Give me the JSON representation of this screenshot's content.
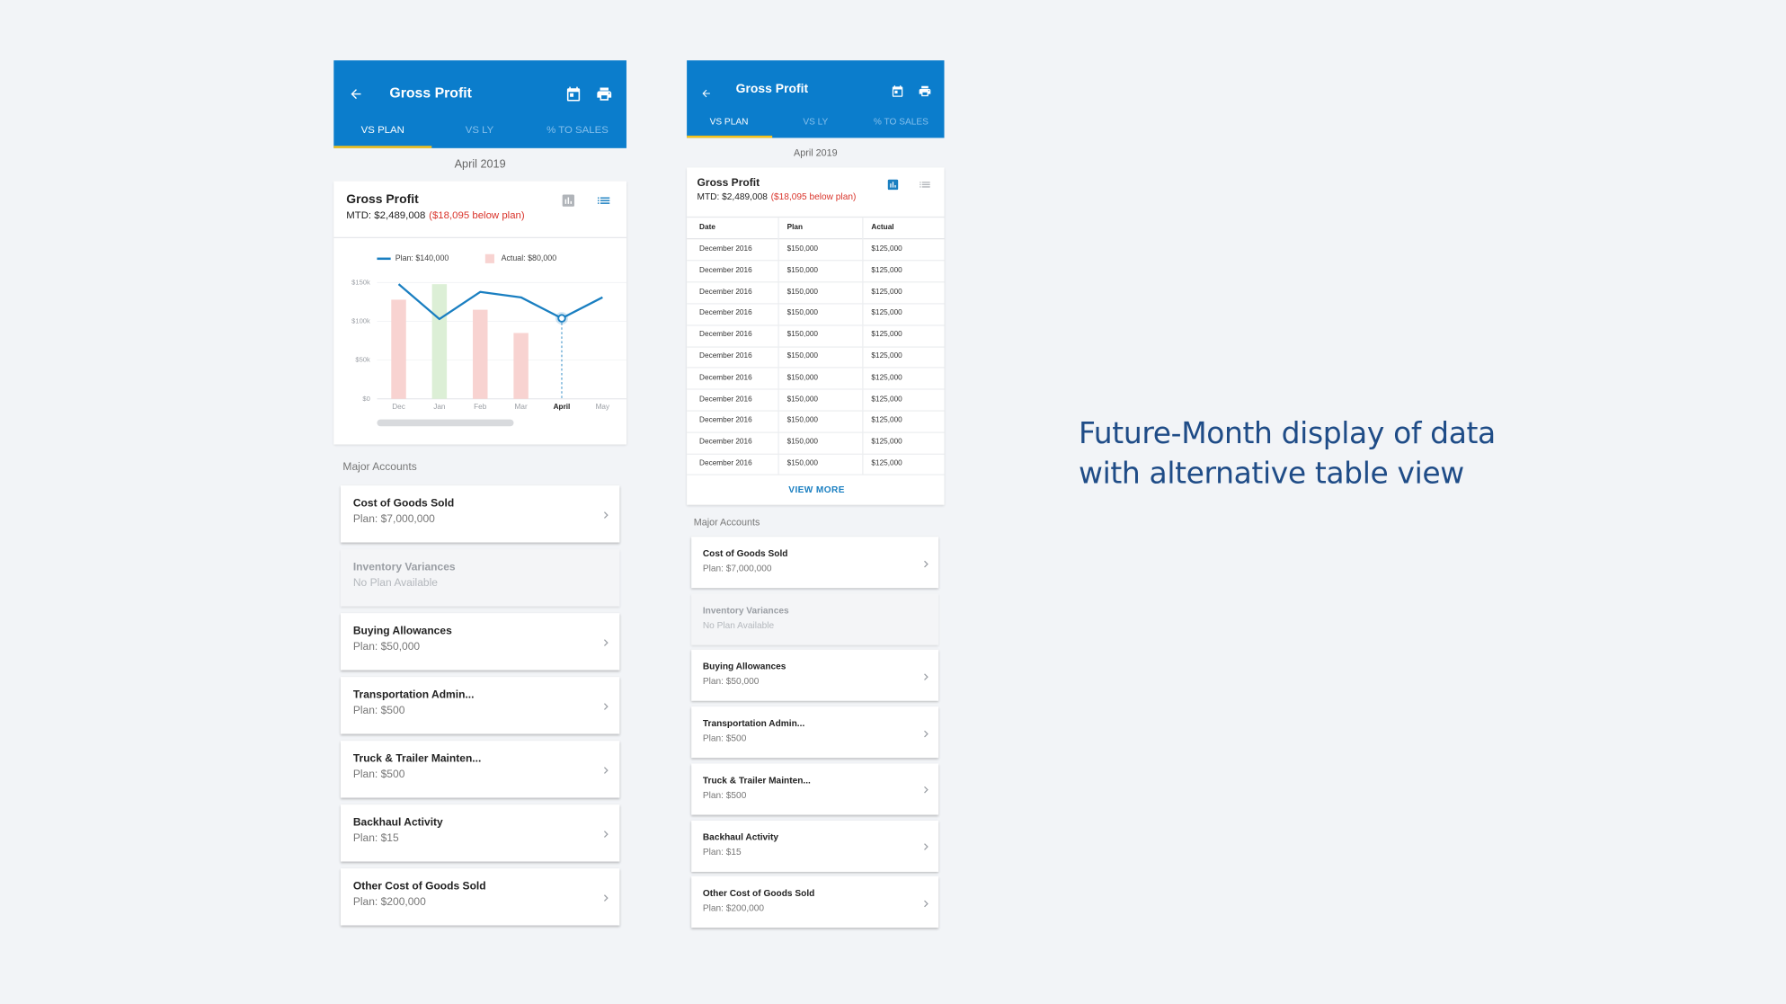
{
  "caption": [
    "Future-Month display of data",
    "with alternative table view"
  ],
  "screens": [
    {
      "header": {
        "title": "Gross Profit",
        "tabs": [
          "VS PLAN",
          "VS LY",
          "% TO SALES"
        ],
        "active_tab": 0
      },
      "period": "April 2019",
      "card": {
        "title": "Gross Profit",
        "mtd": "MTD: $2,489,008",
        "variance": "($18,095 below plan)",
        "view": "chart"
      },
      "chart_data": {
        "type": "combo",
        "categories": [
          "Dec",
          "Jan",
          "Feb",
          "Mar",
          "April",
          "May"
        ],
        "selected_category": "April",
        "series": [
          {
            "name": "Plan: $140,000",
            "type": "line",
            "color": "#1a7fc1",
            "values": [
              148000,
              103000,
              138000,
              131000,
              104000,
              131000
            ]
          },
          {
            "name": "Actual: $80,000",
            "type": "bar",
            "color": "#f8d3d1",
            "colors": [
              "#f8d3d1",
              "#dcefd6",
              "#f8d3d1",
              "#f8d3d1",
              "#f8d3d1",
              "#f8d3d1"
            ],
            "values": [
              128000,
              148000,
              115000,
              85000,
              null,
              null
            ]
          }
        ],
        "ylim": [
          0,
          150000
        ],
        "yticks": [
          {
            "value": 0,
            "label": "$0"
          },
          {
            "value": 50000,
            "label": "$50k"
          },
          {
            "value": 100000,
            "label": "$100k"
          },
          {
            "value": 150000,
            "label": "$150k"
          }
        ],
        "grid": true
      },
      "accounts_heading": "Major Accounts",
      "accounts": [
        {
          "name": "Cost of Goods Sold",
          "plan": "Plan: $7,000,000",
          "available": true
        },
        {
          "name": "Inventory Variances",
          "plan": "No Plan Available",
          "available": false
        },
        {
          "name": "Buying Allowances",
          "plan": "Plan: $50,000",
          "available": true
        },
        {
          "name": "Transportation Admin...",
          "plan": "Plan: $500",
          "available": true
        },
        {
          "name": "Truck & Trailer Mainten...",
          "plan": "Plan: $500",
          "available": true
        },
        {
          "name": "Backhaul Activity",
          "plan": "Plan: $15",
          "available": true
        },
        {
          "name": "Other Cost of Goods Sold",
          "plan": "Plan: $200,000",
          "available": true
        }
      ]
    },
    {
      "header": {
        "title": "Gross Profit",
        "tabs": [
          "VS PLAN",
          "VS LY",
          "% TO SALES"
        ],
        "active_tab": 0
      },
      "period": "April 2019",
      "card": {
        "title": "Gross Profit",
        "mtd": "MTD: $2,489,008",
        "variance": "($18,095 below plan)",
        "view": "table"
      },
      "table": {
        "columns": [
          "Date",
          "Plan",
          "Actual"
        ],
        "rows": [
          [
            "December 2016",
            "$150,000",
            "$125,000"
          ],
          [
            "December 2016",
            "$150,000",
            "$125,000"
          ],
          [
            "December 2016",
            "$150,000",
            "$125,000"
          ],
          [
            "December 2016",
            "$150,000",
            "$125,000"
          ],
          [
            "December 2016",
            "$150,000",
            "$125,000"
          ],
          [
            "December 2016",
            "$150,000",
            "$125,000"
          ],
          [
            "December 2016",
            "$150,000",
            "$125,000"
          ],
          [
            "December 2016",
            "$150,000",
            "$125,000"
          ],
          [
            "December 2016",
            "$150,000",
            "$125,000"
          ],
          [
            "December 2016",
            "$150,000",
            "$125,000"
          ],
          [
            "December 2016",
            "$150,000",
            "$125,000"
          ]
        ]
      },
      "view_more": "VIEW MORE",
      "accounts_heading": "Major Accounts",
      "accounts": [
        {
          "name": "Cost of Goods Sold",
          "plan": "Plan: $7,000,000",
          "available": true
        },
        {
          "name": "Inventory Variances",
          "plan": "No Plan Available",
          "available": false
        },
        {
          "name": "Buying Allowances",
          "plan": "Plan: $50,000",
          "available": true
        },
        {
          "name": "Transportation Admin...",
          "plan": "Plan: $500",
          "available": true
        },
        {
          "name": "Truck & Trailer Mainten...",
          "plan": "Plan: $500",
          "available": true
        },
        {
          "name": "Backhaul Activity",
          "plan": "Plan: $15",
          "available": true
        },
        {
          "name": "Other Cost of Goods Sold",
          "plan": "Plan: $200,000",
          "available": true
        }
      ]
    }
  ]
}
